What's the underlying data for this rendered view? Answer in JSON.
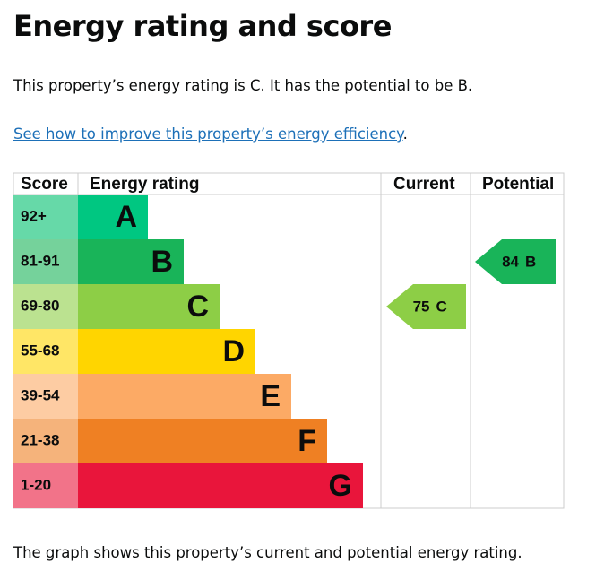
{
  "heading": "Energy rating and score",
  "summary": "This property’s energy rating is C. It has the potential to be B.",
  "link": {
    "text": "See how to improve this property’s energy efficiency",
    "after": "."
  },
  "graph": {
    "headers": [
      "Score",
      "Energy rating",
      "Current",
      "Potential"
    ],
    "bands": [
      {
        "score": "92+",
        "band": "A",
        "color": "#00c781",
        "light": "#66d9a8"
      },
      {
        "score": "81-91",
        "band": "B",
        "color": "#19b459",
        "light": "#75d29b"
      },
      {
        "score": "69-80",
        "band": "C",
        "color": "#8dce46",
        "light": "#bbe290"
      },
      {
        "score": "55-68",
        "band": "D",
        "color": "#ffd500",
        "light": "#ffe666"
      },
      {
        "score": "39-54",
        "band": "E",
        "color": "#fcaa65",
        "light": "#fdcca3"
      },
      {
        "score": "21-38",
        "band": "F",
        "color": "#ef8023",
        "light": "#f5b37b"
      },
      {
        "score": "1-20",
        "band": "G",
        "color": "#e9153b",
        "light": "#f27389"
      }
    ],
    "current": {
      "value": 75,
      "band": "C"
    },
    "potential": {
      "value": 84,
      "band": "B"
    }
  },
  "footer": "The graph shows this property’s current and potential energy rating."
}
